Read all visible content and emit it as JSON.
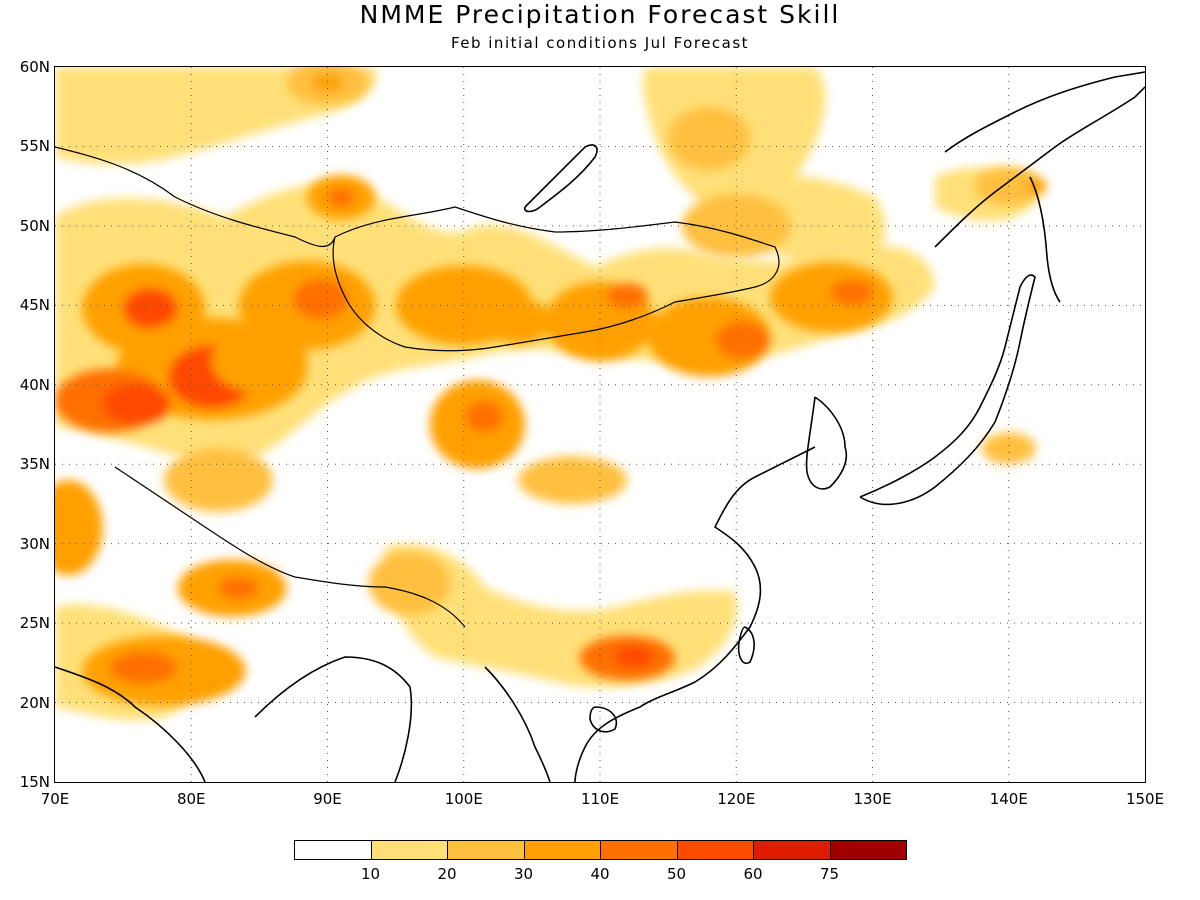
{
  "title": "NMME Precipitation Forecast Skill",
  "subtitle": "Feb initial conditions  Jul Forecast",
  "map": {
    "lon_range": [
      70,
      150
    ],
    "lat_range": [
      15,
      60
    ],
    "lat_ticks": [
      {
        "value": 60,
        "label": "60N"
      },
      {
        "value": 55,
        "label": "55N"
      },
      {
        "value": 50,
        "label": "50N"
      },
      {
        "value": 45,
        "label": "45N"
      },
      {
        "value": 40,
        "label": "40N"
      },
      {
        "value": 35,
        "label": "35N"
      },
      {
        "value": 30,
        "label": "30N"
      },
      {
        "value": 25,
        "label": "25N"
      },
      {
        "value": 20,
        "label": "20N"
      },
      {
        "value": 15,
        "label": "15N"
      }
    ],
    "lon_ticks": [
      {
        "value": 70,
        "label": "70E"
      },
      {
        "value": 80,
        "label": "80E"
      },
      {
        "value": 90,
        "label": "90E"
      },
      {
        "value": 100,
        "label": "100E"
      },
      {
        "value": 110,
        "label": "110E"
      },
      {
        "value": 120,
        "label": "120E"
      },
      {
        "value": 130,
        "label": "130E"
      },
      {
        "value": 140,
        "label": "140E"
      },
      {
        "value": 150,
        "label": "150E"
      }
    ],
    "gridlines": "dotted"
  },
  "legend": {
    "colors": [
      "#ffffff",
      "#ffe078",
      "#ffc040",
      "#ffa000",
      "#ff7000",
      "#ff4a00",
      "#e01c00",
      "#a00000"
    ],
    "labels": [
      "10",
      "20",
      "30",
      "40",
      "50",
      "60",
      "75"
    ]
  },
  "skill_regions": [
    {
      "lon": 76.5,
      "lat": 44.8,
      "rx": 4.5,
      "ry": 2.8,
      "level": 3
    },
    {
      "lon": 77,
      "lat": 44.8,
      "rx": 2,
      "ry": 1.3,
      "level": 5
    },
    {
      "lon": 81.5,
      "lat": 41,
      "rx": 7,
      "ry": 3.2,
      "level": 3
    },
    {
      "lon": 81.5,
      "lat": 40.5,
      "rx": 3.2,
      "ry": 2,
      "level": 5
    },
    {
      "lon": 74,
      "lat": 39,
      "rx": 4,
      "ry": 2,
      "level": 4
    },
    {
      "lon": 76,
      "lat": 38.8,
      "rx": 2.5,
      "ry": 1.3,
      "level": 5
    },
    {
      "lon": 88.5,
      "lat": 45,
      "rx": 5,
      "ry": 2.8,
      "level": 3
    },
    {
      "lon": 89.5,
      "lat": 45.4,
      "rx": 2,
      "ry": 1.3,
      "level": 4
    },
    {
      "lon": 91,
      "lat": 51.8,
      "rx": 2.5,
      "ry": 1.4,
      "level": 3
    },
    {
      "lon": 91,
      "lat": 51.8,
      "rx": 1,
      "ry": 0.6,
      "level": 4
    },
    {
      "lon": 85,
      "lat": 41.5,
      "rx": 3.5,
      "ry": 2,
      "level": 3
    },
    {
      "lon": 100,
      "lat": 45,
      "rx": 5,
      "ry": 2.5,
      "level": 3
    },
    {
      "lon": 104,
      "lat": 44,
      "rx": 2.5,
      "ry": 1.4,
      "level": 3
    },
    {
      "lon": 110,
      "lat": 44,
      "rx": 4,
      "ry": 2.5,
      "level": 3
    },
    {
      "lon": 112,
      "lat": 45.6,
      "rx": 1.5,
      "ry": 0.8,
      "level": 4
    },
    {
      "lon": 118,
      "lat": 43,
      "rx": 4.5,
      "ry": 2.5,
      "level": 3
    },
    {
      "lon": 120.5,
      "lat": 42.8,
      "rx": 2,
      "ry": 1.2,
      "level": 4
    },
    {
      "lon": 127,
      "lat": 45.5,
      "rx": 4.5,
      "ry": 2.2,
      "level": 3
    },
    {
      "lon": 128.5,
      "lat": 45.8,
      "rx": 1.6,
      "ry": 0.8,
      "level": 4
    },
    {
      "lon": 101,
      "lat": 37.5,
      "rx": 3.5,
      "ry": 2.8,
      "level": 3
    },
    {
      "lon": 101.5,
      "lat": 38,
      "rx": 1.4,
      "ry": 1,
      "level": 4
    },
    {
      "lon": 78,
      "lat": 22,
      "rx": 6,
      "ry": 2.2,
      "level": 3
    },
    {
      "lon": 76.5,
      "lat": 22.2,
      "rx": 2.5,
      "ry": 1,
      "level": 4
    },
    {
      "lon": 83,
      "lat": 27.2,
      "rx": 4,
      "ry": 1.8,
      "level": 3
    },
    {
      "lon": 83.5,
      "lat": 27.2,
      "rx": 1.5,
      "ry": 0.7,
      "level": 4
    },
    {
      "lon": 112,
      "lat": 22.8,
      "rx": 3.5,
      "ry": 1.4,
      "level": 4
    },
    {
      "lon": 112.5,
      "lat": 22.9,
      "rx": 1.4,
      "ry": 0.7,
      "level": 5
    },
    {
      "lon": 71,
      "lat": 31,
      "rx": 2.5,
      "ry": 3,
      "level": 3
    },
    {
      "lon": 82,
      "lat": 34,
      "rx": 4,
      "ry": 2,
      "level": 2
    },
    {
      "lon": 118,
      "lat": 55.5,
      "rx": 3,
      "ry": 2,
      "level": 2
    },
    {
      "lon": 90,
      "lat": 59,
      "rx": 3,
      "ry": 1.4,
      "level": 2
    },
    {
      "lon": 90,
      "lat": 59,
      "rx": 1.2,
      "ry": 0.6,
      "level": 3
    },
    {
      "lon": 108,
      "lat": 34,
      "rx": 4,
      "ry": 1.5,
      "level": 2
    },
    {
      "lon": 96,
      "lat": 27.5,
      "rx": 3,
      "ry": 2,
      "level": 2
    },
    {
      "lon": 120,
      "lat": 50,
      "rx": 4,
      "ry": 2,
      "level": 2
    },
    {
      "lon": 140,
      "lat": 52.5,
      "rx": 2.5,
      "ry": 1.2,
      "level": 2
    },
    {
      "lon": 142,
      "lat": 52.5,
      "rx": 0.8,
      "ry": 0.5,
      "level": 3
    },
    {
      "lon": 140,
      "lat": 36,
      "rx": 2,
      "ry": 1,
      "level": 2
    }
  ]
}
